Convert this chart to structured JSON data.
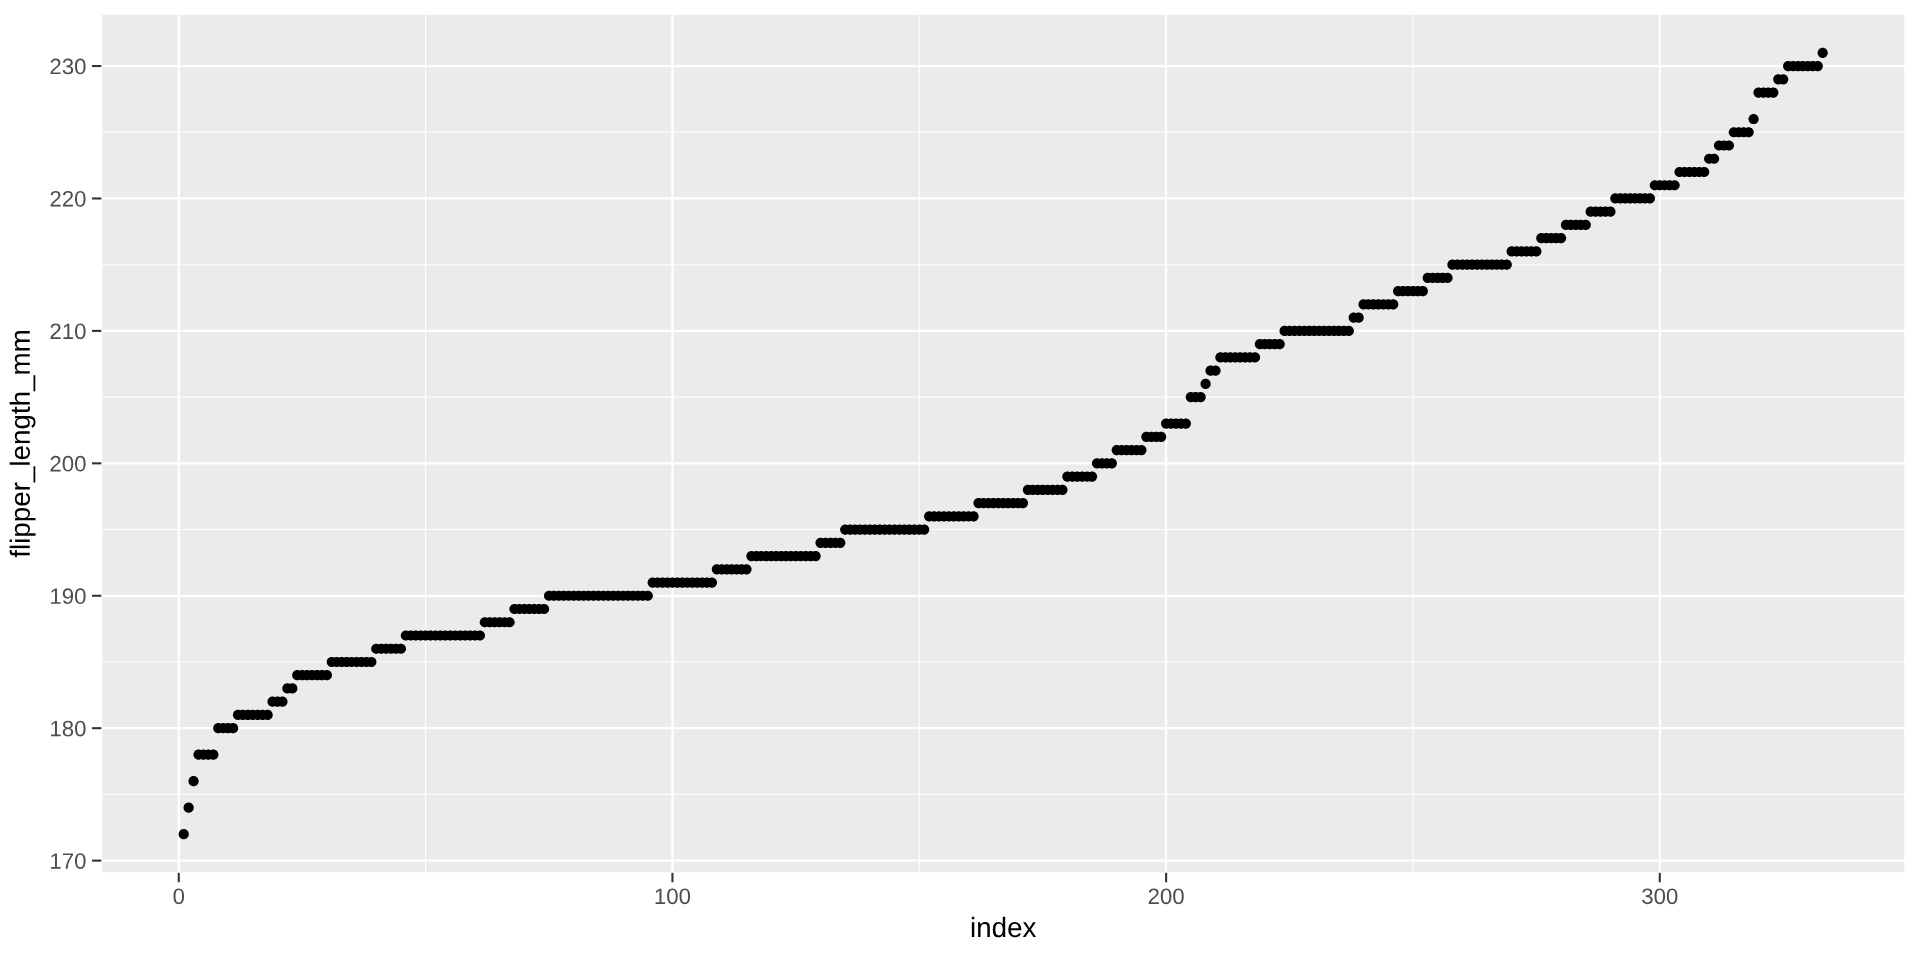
{
  "chart_data": {
    "type": "scatter",
    "xlabel": "index",
    "ylabel": "flipper_length_mm",
    "color": "#000000",
    "marker": "circle",
    "grid": true,
    "xlim": [
      -15.6,
      349.6
    ],
    "ylim": [
      169.1,
      233.9
    ],
    "xticks": [
      0,
      100,
      200,
      300
    ],
    "yticks": [
      170,
      180,
      190,
      200,
      210,
      220,
      230
    ],
    "x": [
      1,
      2,
      3,
      4,
      5,
      6,
      7,
      8,
      9,
      10,
      11,
      12,
      13,
      14,
      15,
      16,
      17,
      18,
      19,
      20,
      21,
      22,
      23,
      24,
      25,
      26,
      27,
      28,
      29,
      30,
      31,
      32,
      33,
      34,
      35,
      36,
      37,
      38,
      39,
      40,
      41,
      42,
      43,
      44,
      45,
      46,
      47,
      48,
      49,
      50,
      51,
      52,
      53,
      54,
      55,
      56,
      57,
      58,
      59,
      60,
      61,
      62,
      63,
      64,
      65,
      66,
      67,
      68,
      69,
      70,
      71,
      72,
      73,
      74,
      75,
      76,
      77,
      78,
      79,
      80,
      81,
      82,
      83,
      84,
      85,
      86,
      87,
      88,
      89,
      90,
      91,
      92,
      93,
      94,
      95,
      96,
      97,
      98,
      99,
      100,
      101,
      102,
      103,
      104,
      105,
      106,
      107,
      108,
      109,
      110,
      111,
      112,
      113,
      114,
      115,
      116,
      117,
      118,
      119,
      120,
      121,
      122,
      123,
      124,
      125,
      126,
      127,
      128,
      129,
      130,
      131,
      132,
      133,
      134,
      135,
      136,
      137,
      138,
      139,
      140,
      141,
      142,
      143,
      144,
      145,
      146,
      147,
      148,
      149,
      150,
      151,
      152,
      153,
      154,
      155,
      156,
      157,
      158,
      159,
      160,
      161,
      162,
      163,
      164,
      165,
      166,
      167,
      168,
      169,
      170,
      171,
      172,
      173,
      174,
      175,
      176,
      177,
      178,
      179,
      180,
      181,
      182,
      183,
      184,
      185,
      186,
      187,
      188,
      189,
      190,
      191,
      192,
      193,
      194,
      195,
      196,
      197,
      198,
      199,
      200,
      201,
      202,
      203,
      204,
      205,
      206,
      207,
      208,
      209,
      210,
      211,
      212,
      213,
      214,
      215,
      216,
      217,
      218,
      219,
      220,
      221,
      222,
      223,
      224,
      225,
      226,
      227,
      228,
      229,
      230,
      231,
      232,
      233,
      234,
      235,
      236,
      237,
      238,
      239,
      240,
      241,
      242,
      243,
      244,
      245,
      246,
      247,
      248,
      249,
      250,
      251,
      252,
      253,
      254,
      255,
      256,
      257,
      258,
      259,
      260,
      261,
      262,
      263,
      264,
      265,
      266,
      267,
      268,
      269,
      270,
      271,
      272,
      273,
      274,
      275,
      276,
      277,
      278,
      279,
      280,
      281,
      282,
      283,
      284,
      285,
      286,
      287,
      288,
      289,
      290,
      291,
      292,
      293,
      294,
      295,
      296,
      297,
      298,
      299,
      300,
      301,
      302,
      303,
      304,
      305,
      306,
      307,
      308,
      309,
      310,
      311,
      312,
      313,
      314,
      315,
      316,
      317,
      318,
      319,
      320,
      321,
      322,
      323,
      324,
      325,
      326,
      327,
      328,
      329,
      330,
      331,
      332,
      333
    ],
    "values": [
      172,
      174,
      176,
      178,
      178,
      178,
      178,
      180,
      180,
      180,
      180,
      181,
      181,
      181,
      181,
      181,
      181,
      181,
      182,
      182,
      182,
      183,
      183,
      184,
      184,
      184,
      184,
      184,
      184,
      184,
      185,
      185,
      185,
      185,
      185,
      185,
      185,
      185,
      185,
      186,
      186,
      186,
      186,
      186,
      186,
      187,
      187,
      187,
      187,
      187,
      187,
      187,
      187,
      187,
      187,
      187,
      187,
      187,
      187,
      187,
      187,
      188,
      188,
      188,
      188,
      188,
      188,
      189,
      189,
      189,
      189,
      189,
      189,
      189,
      190,
      190,
      190,
      190,
      190,
      190,
      190,
      190,
      190,
      190,
      190,
      190,
      190,
      190,
      190,
      190,
      190,
      190,
      190,
      190,
      190,
      191,
      191,
      191,
      191,
      191,
      191,
      191,
      191,
      191,
      191,
      191,
      191,
      191,
      192,
      192,
      192,
      192,
      192,
      192,
      192,
      193,
      193,
      193,
      193,
      193,
      193,
      193,
      193,
      193,
      193,
      193,
      193,
      193,
      193,
      194,
      194,
      194,
      194,
      194,
      195,
      195,
      195,
      195,
      195,
      195,
      195,
      195,
      195,
      195,
      195,
      195,
      195,
      195,
      195,
      195,
      195,
      196,
      196,
      196,
      196,
      196,
      196,
      196,
      196,
      196,
      196,
      197,
      197,
      197,
      197,
      197,
      197,
      197,
      197,
      197,
      197,
      198,
      198,
      198,
      198,
      198,
      198,
      198,
      198,
      199,
      199,
      199,
      199,
      199,
      199,
      200,
      200,
      200,
      200,
      201,
      201,
      201,
      201,
      201,
      201,
      202,
      202,
      202,
      202,
      203,
      203,
      203,
      203,
      203,
      205,
      205,
      205,
      206,
      207,
      207,
      208,
      208,
      208,
      208,
      208,
      208,
      208,
      208,
      209,
      209,
      209,
      209,
      209,
      210,
      210,
      210,
      210,
      210,
      210,
      210,
      210,
      210,
      210,
      210,
      210,
      210,
      210,
      211,
      211,
      212,
      212,
      212,
      212,
      212,
      212,
      212,
      213,
      213,
      213,
      213,
      213,
      213,
      214,
      214,
      214,
      214,
      214,
      215,
      215,
      215,
      215,
      215,
      215,
      215,
      215,
      215,
      215,
      215,
      215,
      216,
      216,
      216,
      216,
      216,
      216,
      217,
      217,
      217,
      217,
      217,
      218,
      218,
      218,
      218,
      218,
      219,
      219,
      219,
      219,
      219,
      220,
      220,
      220,
      220,
      220,
      220,
      220,
      220,
      221,
      221,
      221,
      221,
      221,
      222,
      222,
      222,
      222,
      222,
      222,
      223,
      223,
      224,
      224,
      224,
      225,
      225,
      225,
      225,
      226,
      228,
      228,
      228,
      228,
      229,
      229,
      230,
      230,
      230,
      230,
      230,
      230,
      230,
      231
    ]
  }
}
